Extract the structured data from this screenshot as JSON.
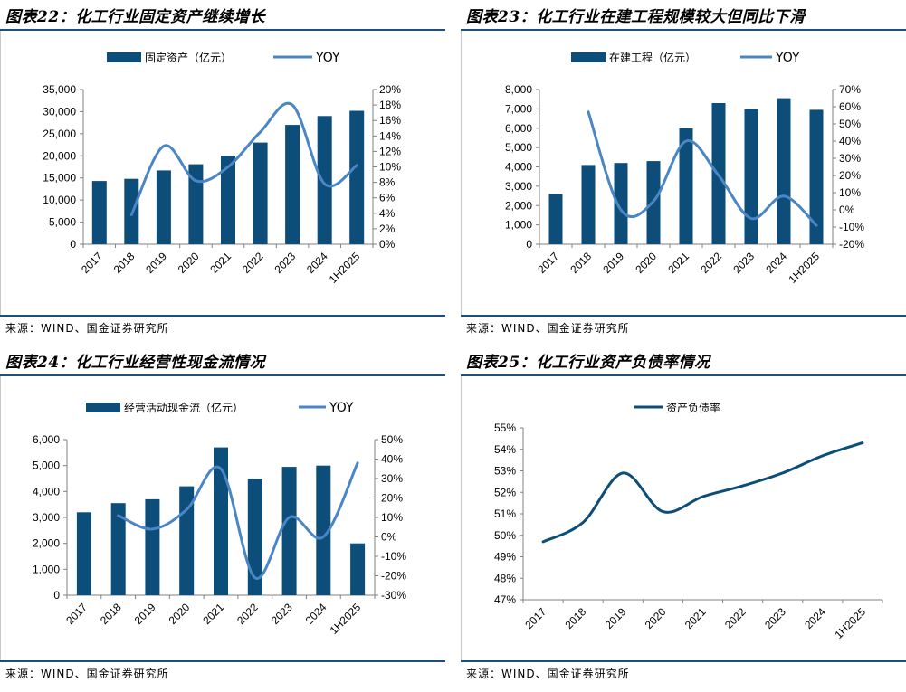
{
  "charts": [
    {
      "title": "图表22：化工行业固定资产继续增长",
      "source": "来源：WIND、国金证券研究所",
      "chart_data": {
        "type": "bar",
        "categories": [
          "2017",
          "2018",
          "2019",
          "2020",
          "2021",
          "2022",
          "2023",
          "2024",
          "1H2025"
        ],
        "series": [
          {
            "name": "固定资产（亿元）",
            "type": "bar",
            "axis": "left",
            "values": [
              14300,
              14800,
              16700,
              18100,
              20000,
              23000,
              27000,
              29000,
              30200
            ]
          },
          {
            "name": "YOY",
            "type": "line",
            "axis": "right",
            "values": [
              null,
              3.8,
              12.7,
              8.2,
              10.0,
              14.5,
              18.0,
              7.8,
              10.2
            ]
          }
        ],
        "left_axis": {
          "ylim": [
            0,
            35000
          ],
          "ticks": [
            0,
            5000,
            10000,
            15000,
            20000,
            25000,
            30000,
            35000
          ],
          "tick_labels": [
            "0",
            "5,000",
            "10,000",
            "15,000",
            "20,000",
            "25,000",
            "30,000",
            "35,000"
          ]
        },
        "right_axis": {
          "ylim": [
            0,
            20
          ],
          "ticks": [
            0,
            2,
            4,
            6,
            8,
            10,
            12,
            14,
            16,
            18,
            20
          ],
          "tick_labels": [
            "0%",
            "2%",
            "4%",
            "6%",
            "8%",
            "10%",
            "12%",
            "14%",
            "16%",
            "18%",
            "20%"
          ]
        },
        "legend_position": "top"
      }
    },
    {
      "title": "图表23：化工行业在建工程规模较大但同比下滑",
      "source": "来源：WIND、国金证券研究所",
      "chart_data": {
        "type": "bar",
        "categories": [
          "2017",
          "2018",
          "2019",
          "2020",
          "2021",
          "2022",
          "2023",
          "2024",
          "1H2025"
        ],
        "series": [
          {
            "name": "在建工程（亿元）",
            "type": "bar",
            "axis": "left",
            "values": [
              2600,
              4100,
              4200,
              4300,
              6000,
              7300,
              7000,
              7550,
              6950
            ]
          },
          {
            "name": "YOY",
            "type": "line",
            "axis": "right",
            "values": [
              null,
              57,
              0,
              5,
              40,
              20,
              -5,
              8,
              -9
            ]
          }
        ],
        "left_axis": {
          "ylim": [
            0,
            8000
          ],
          "ticks": [
            0,
            1000,
            2000,
            3000,
            4000,
            5000,
            6000,
            7000,
            8000
          ],
          "tick_labels": [
            "0",
            "1,000",
            "2,000",
            "3,000",
            "4,000",
            "5,000",
            "6,000",
            "7,000",
            "8,000"
          ]
        },
        "right_axis": {
          "ylim": [
            -20,
            70
          ],
          "ticks": [
            -20,
            -10,
            0,
            10,
            20,
            30,
            40,
            50,
            60,
            70
          ],
          "tick_labels": [
            "-20%",
            "-10%",
            "0%",
            "10%",
            "20%",
            "30%",
            "40%",
            "50%",
            "60%",
            "70%"
          ]
        },
        "legend_position": "top"
      }
    },
    {
      "title": "图表24：化工行业经营性现金流情况",
      "source": "来源：WIND、国金证券研究所",
      "chart_data": {
        "type": "bar",
        "categories": [
          "2017",
          "2018",
          "2019",
          "2020",
          "2021",
          "2022",
          "2023",
          "2024",
          "1H2025"
        ],
        "series": [
          {
            "name": "经营活动现金流（亿元）",
            "type": "bar",
            "axis": "left",
            "values": [
              3200,
              3550,
              3700,
              4200,
              5700,
              4500,
              4950,
              5000,
              2000
            ]
          },
          {
            "name": "YOY",
            "type": "line",
            "axis": "right",
            "values": [
              null,
              11,
              4,
              14,
              35,
              -21,
              10,
              0,
              38
            ]
          }
        ],
        "left_axis": {
          "ylim": [
            0,
            6000
          ],
          "ticks": [
            0,
            1000,
            2000,
            3000,
            4000,
            5000,
            6000
          ],
          "tick_labels": [
            "0",
            "1,000",
            "2,000",
            "3,000",
            "4,000",
            "5,000",
            "6,000"
          ]
        },
        "right_axis": {
          "ylim": [
            -30,
            50
          ],
          "ticks": [
            -30,
            -20,
            -10,
            0,
            10,
            20,
            30,
            40,
            50
          ],
          "tick_labels": [
            "-30%",
            "-20%",
            "-10%",
            "0%",
            "10%",
            "20%",
            "30%",
            "40%",
            "50%"
          ]
        },
        "legend_position": "top"
      }
    },
    {
      "title": "图表25：化工行业资产负债率情况",
      "source": "来源：WIND、国金证券研究所",
      "chart_data": {
        "type": "line",
        "categories": [
          "2017",
          "2018",
          "2019",
          "2020",
          "2021",
          "2022",
          "2023",
          "2024",
          "1H2025"
        ],
        "series": [
          {
            "name": "资产负债率",
            "type": "line",
            "axis": "left",
            "values": [
              49.7,
              50.6,
              52.9,
              51.1,
              51.8,
              52.3,
              52.9,
              53.7,
              54.3
            ]
          }
        ],
        "left_axis": {
          "ylim": [
            47,
            55
          ],
          "ticks": [
            47,
            48,
            49,
            50,
            51,
            52,
            53,
            54,
            55
          ],
          "tick_labels": [
            "47%",
            "48%",
            "49%",
            "50%",
            "51%",
            "52%",
            "53%",
            "54%",
            "55%"
          ]
        },
        "legend_position": "top"
      }
    }
  ],
  "colors": {
    "bar": "#0d4d7a",
    "line": "#4a86c5",
    "single_line": "#0d4d7a",
    "rule": "#1f4e79"
  }
}
